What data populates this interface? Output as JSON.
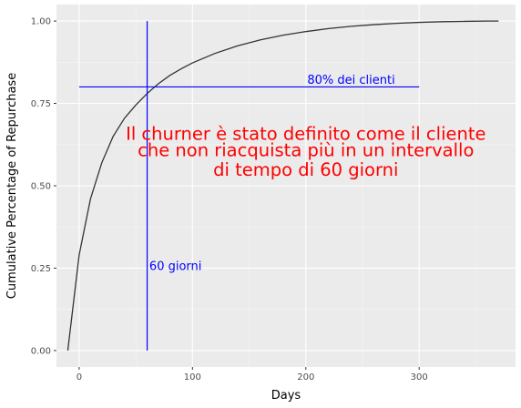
{
  "chart_data": {
    "type": "line",
    "xlabel": "Days",
    "ylabel": "Cumulative Percentage of Repurchase",
    "xlim": [
      -20,
      385
    ],
    "ylim": [
      -0.05,
      1.05
    ],
    "x_ticks": [
      0,
      100,
      200,
      300
    ],
    "y_ticks": [
      0.0,
      0.25,
      0.5,
      0.75,
      1.0
    ],
    "x_tick_labels": [
      "0",
      "100",
      "200",
      "300"
    ],
    "y_tick_labels": [
      "0.00",
      "0.25",
      "0.50",
      "0.75",
      "1.00"
    ],
    "grid": true,
    "legend": "none",
    "series": [
      {
        "color": "#333333",
        "x": [
          -10,
          0,
          10,
          20,
          30,
          40,
          50,
          60,
          70,
          80,
          90,
          100,
          120,
          140,
          160,
          180,
          200,
          220,
          240,
          260,
          280,
          300,
          320,
          340,
          360,
          370
        ],
        "y": [
          0.0,
          0.29,
          0.46,
          0.57,
          0.65,
          0.705,
          0.745,
          0.78,
          0.81,
          0.835,
          0.855,
          0.873,
          0.902,
          0.925,
          0.943,
          0.957,
          0.968,
          0.977,
          0.984,
          0.989,
          0.993,
          0.996,
          0.998,
          0.999,
          1.0,
          1.0
        ]
      }
    ],
    "reference_lines": {
      "color": "#0000ff",
      "vertical": {
        "x": 60,
        "y_range": [
          0,
          1.0
        ]
      },
      "horizontal": {
        "y": 0.8,
        "x_range": [
          0,
          300
        ]
      }
    },
    "annotations": [
      {
        "name": "horizontal-line-label",
        "text": "80% dei clienti",
        "x": 240,
        "y": 0.81,
        "color": "#0000ff"
      },
      {
        "name": "vertical-line-label",
        "text": "60 giorni",
        "x": 85,
        "y": 0.245,
        "color": "#0000ff"
      }
    ],
    "note": {
      "color": "#ff0000",
      "center_x": 200,
      "lines": [
        {
          "text": "Il churner è stato definito come il cliente",
          "y": 0.64
        },
        {
          "text": "che non riacquista più in un intervallo",
          "y": 0.59
        },
        {
          "text": "di tempo di 60 giorni",
          "y": 0.53
        }
      ]
    },
    "colors": {
      "panel_background": "#ebebeb",
      "grid_major": "#ffffff",
      "grid_minor": "#f5f5f5"
    }
  }
}
